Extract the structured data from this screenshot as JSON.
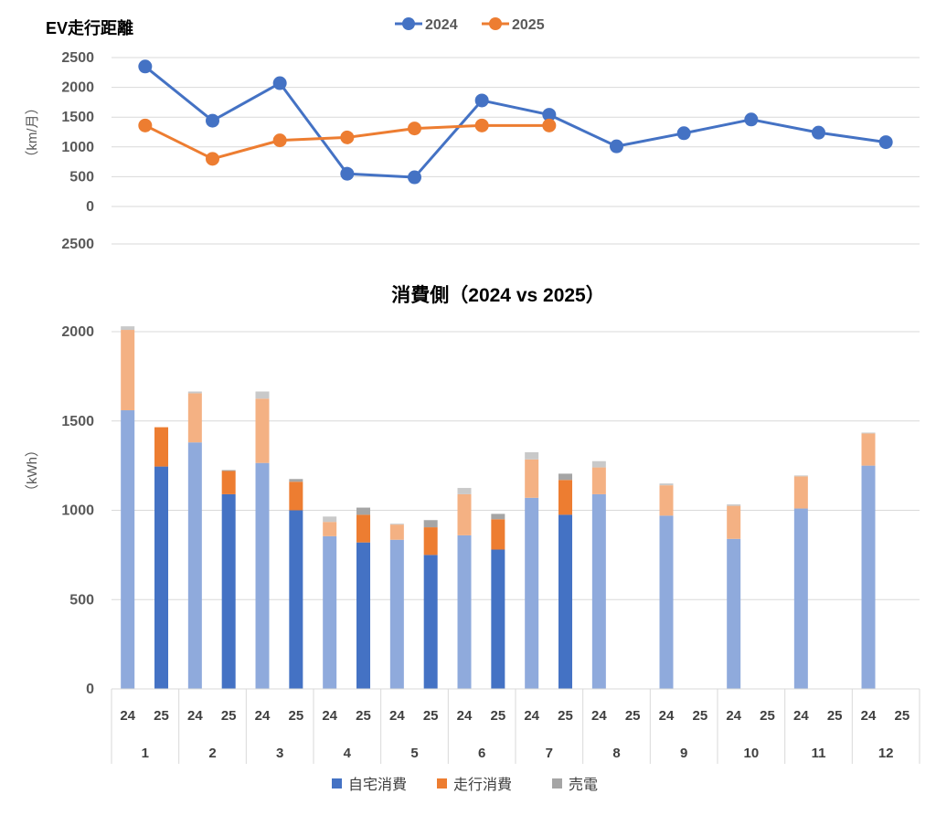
{
  "chart_data": [
    {
      "type": "line",
      "title": "EV走行距離",
      "ylabel": "（km/月）",
      "yticks": [
        "2500",
        "2000",
        "1500",
        "1000",
        "500",
        "0"
      ],
      "ylim": [
        0,
        2500
      ],
      "extra_tick": "2500",
      "x": [
        1,
        2,
        3,
        4,
        5,
        6,
        7,
        8,
        9,
        10,
        11,
        12
      ],
      "grid": true,
      "legend_position": "top",
      "series": [
        {
          "name": "2024",
          "color": "#4472C4",
          "values": [
            2350,
            1440,
            2070,
            550,
            490,
            1780,
            1540,
            1010,
            1230,
            1460,
            1240,
            1080
          ]
        },
        {
          "name": "2025",
          "color": "#ED7D31",
          "values": [
            1360,
            800,
            1110,
            1160,
            1310,
            1360,
            1360,
            null,
            null,
            null,
            null,
            null
          ]
        }
      ]
    },
    {
      "type": "bar",
      "stacked": true,
      "title": "消費側（2024 vs 2025）",
      "ylabel": "（kWh）",
      "yticks": [
        "2000",
        "1500",
        "1000",
        "500",
        "0"
      ],
      "ylim": [
        0,
        2000
      ],
      "grid": true,
      "legend_position": "bottom",
      "months": [
        "1",
        "2",
        "3",
        "4",
        "5",
        "6",
        "7",
        "8",
        "9",
        "10",
        "11",
        "12"
      ],
      "year_labels": [
        "24",
        "25"
      ],
      "colors": {
        "自宅消費_2024": "#8FAADC",
        "自宅消費_2025": "#4472C4",
        "走行消費_2024": "#F4B183",
        "走行消費_2025": "#ED7D31",
        "売電_2024": "#C9C9C9",
        "売電_2025": "#A5A5A5"
      },
      "series": [
        {
          "name": "自宅消費",
          "values_2024": [
            1560,
            1380,
            1265,
            855,
            835,
            860,
            1070,
            1090,
            970,
            840,
            1010,
            1250
          ],
          "values_2025": [
            1245,
            1090,
            1000,
            820,
            750,
            780,
            975,
            null,
            null,
            null,
            null,
            null
          ]
        },
        {
          "name": "走行消費",
          "values_2024": [
            450,
            275,
            360,
            80,
            85,
            230,
            215,
            150,
            170,
            185,
            180,
            180
          ],
          "values_2025": [
            220,
            130,
            160,
            155,
            155,
            170,
            195,
            null,
            null,
            null,
            null,
            null
          ]
        },
        {
          "name": "売電",
          "values_2024": [
            20,
            10,
            40,
            30,
            5,
            35,
            40,
            35,
            10,
            8,
            5,
            5
          ],
          "values_2025": [
            0,
            5,
            15,
            40,
            40,
            30,
            35,
            null,
            null,
            null,
            null,
            null
          ]
        }
      ],
      "legend": [
        {
          "label": "自宅消費",
          "color": "#4472C4"
        },
        {
          "label": "走行消費",
          "color": "#ED7D31"
        },
        {
          "label": "売電",
          "color": "#A5A5A5"
        }
      ]
    }
  ]
}
